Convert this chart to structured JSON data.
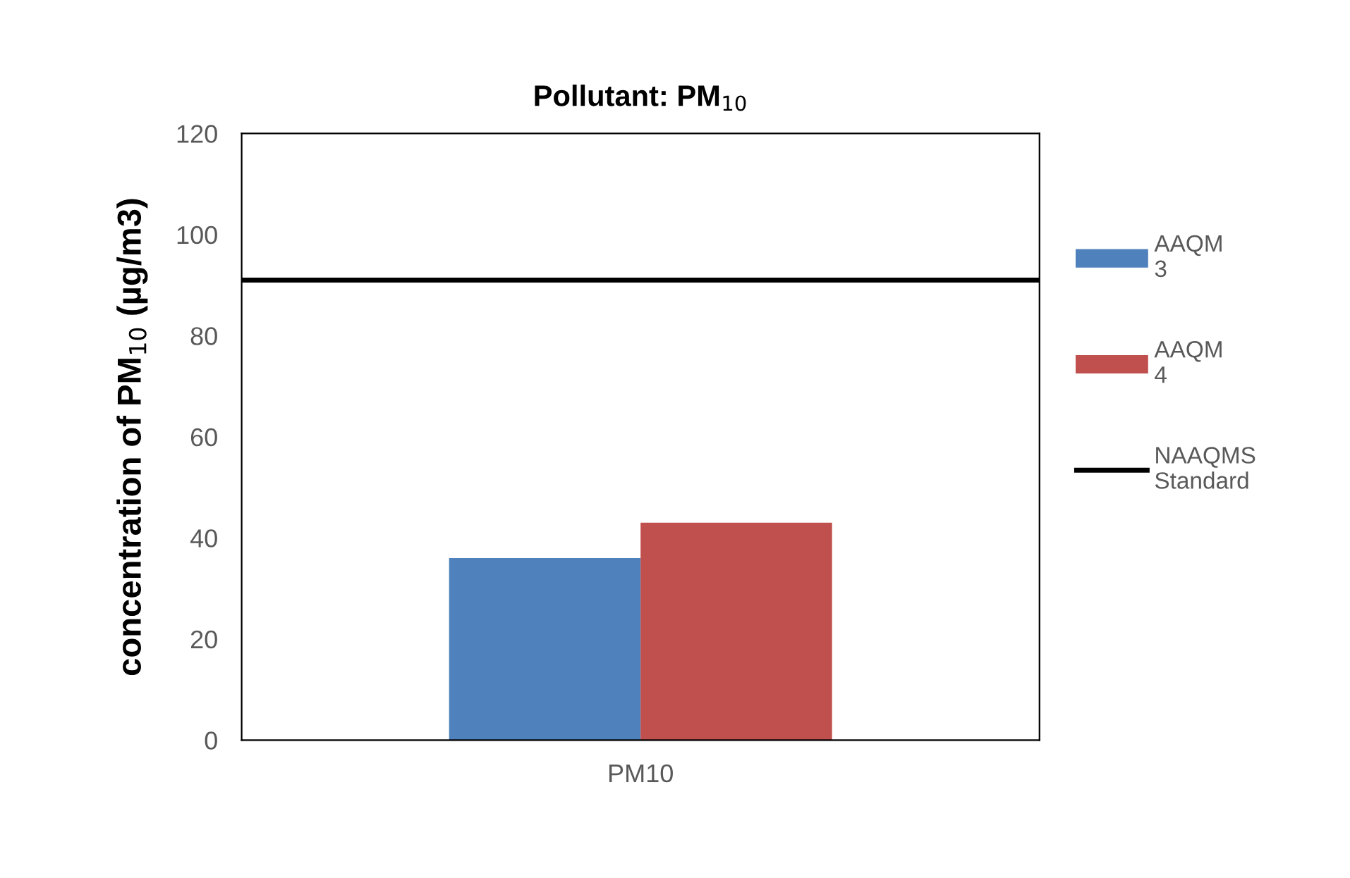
{
  "chart_data": {
    "type": "bar",
    "title": "Pollutant: PM$_{10}$",
    "ylabel": "concentration of PM$_{10}$ (µg/m3)",
    "categories": [
      "PM10"
    ],
    "series": [
      {
        "name": "AAQM 3",
        "color": "#4f81bd",
        "values": [
          36
        ]
      },
      {
        "name": "AAQM 4",
        "color": "#c0504d",
        "values": [
          43
        ]
      }
    ],
    "ref_lines": [
      {
        "axis": "y",
        "value": 91,
        "label": "NAAQMS Standard",
        "color": "#000000"
      }
    ],
    "ylim": [
      0,
      120
    ],
    "yticks": [
      0,
      20,
      40,
      60,
      80,
      100,
      120
    ],
    "legend": "right"
  }
}
